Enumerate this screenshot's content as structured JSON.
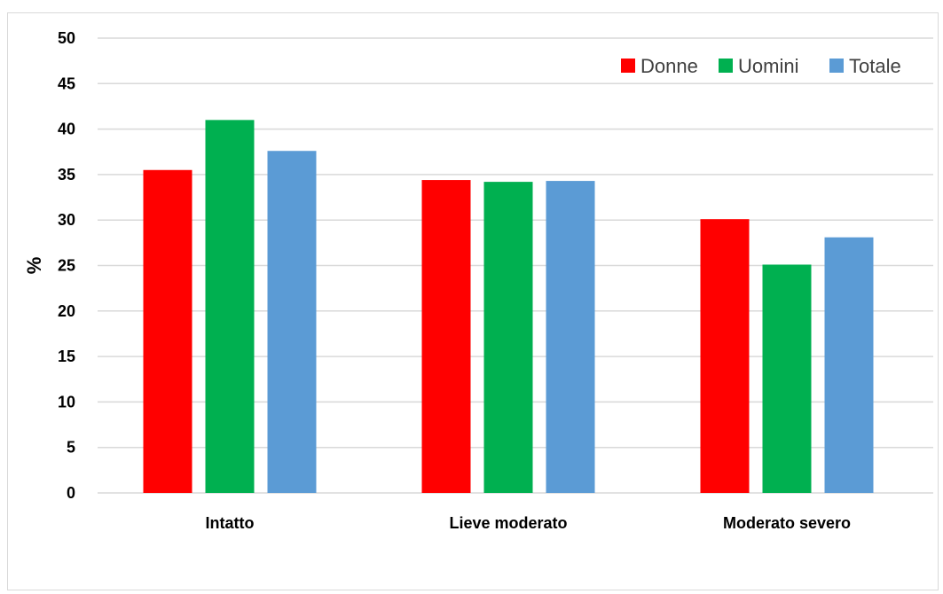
{
  "chart_data": {
    "type": "bar",
    "title": "",
    "xlabel": "",
    "ylabel": "%",
    "ylim": [
      0,
      50
    ],
    "yticks": [
      0,
      5,
      10,
      15,
      20,
      25,
      30,
      35,
      40,
      45,
      50
    ],
    "grid": true,
    "legend_position": "top-right",
    "categories": [
      "Intatto",
      "Lieve moderato",
      "Moderato severo"
    ],
    "series": [
      {
        "name": "Donne",
        "color": "#ff0000",
        "values": [
          35.5,
          34.4,
          30.1
        ]
      },
      {
        "name": "Uomini",
        "color": "#00b050",
        "values": [
          41.0,
          34.2,
          25.1
        ]
      },
      {
        "name": "Totale",
        "color": "#5b9bd5",
        "values": [
          37.6,
          34.3,
          28.1
        ]
      }
    ]
  }
}
